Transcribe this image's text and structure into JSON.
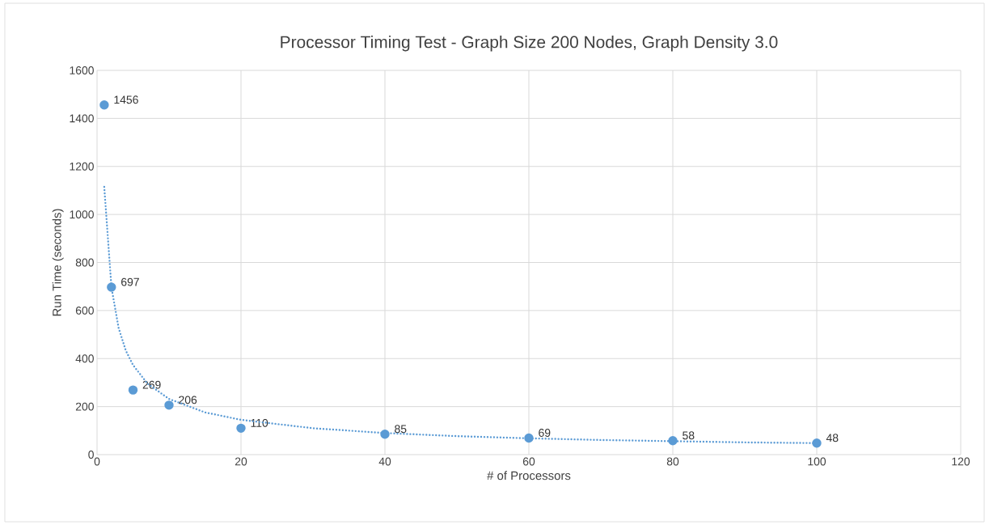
{
  "chart_data": {
    "type": "scatter",
    "title": "Processor Timing Test - Graph Size 200 Nodes, Graph Density 3.0",
    "xlabel": "# of Processors",
    "ylabel": "Run Time (seconds)",
    "xlim": [
      0,
      120
    ],
    "xticks": [
      0,
      20,
      40,
      60,
      80,
      100,
      120
    ],
    "ylim": [
      0,
      1600
    ],
    "yticks": [
      0,
      200,
      400,
      600,
      800,
      1000,
      1200,
      1400,
      1600
    ],
    "grid": true,
    "series": [
      {
        "type": "scatter",
        "color": "#5b9bd5",
        "marker": "circle",
        "x": [
          1,
          2,
          5,
          10,
          20,
          40,
          60,
          80,
          100
        ],
        "values": [
          1456,
          697,
          269,
          206,
          110,
          85,
          69,
          58,
          48
        ],
        "value_labels": [
          "1456",
          "697",
          "269",
          "206",
          "110",
          "85",
          "69",
          "58",
          "48"
        ]
      },
      {
        "type": "line",
        "color": "#5b9bd5",
        "marker": "none",
        "line_style": "dotted",
        "x": [
          1,
          2,
          3,
          4,
          5,
          7,
          10,
          15,
          20,
          30,
          40,
          50,
          60,
          70,
          80,
          90,
          100
        ],
        "values": [
          1115,
          697,
          527,
          433,
          373,
          296,
          232,
          176,
          145,
          110,
          90,
          77,
          68,
          61,
          56,
          51,
          48
        ]
      }
    ]
  }
}
